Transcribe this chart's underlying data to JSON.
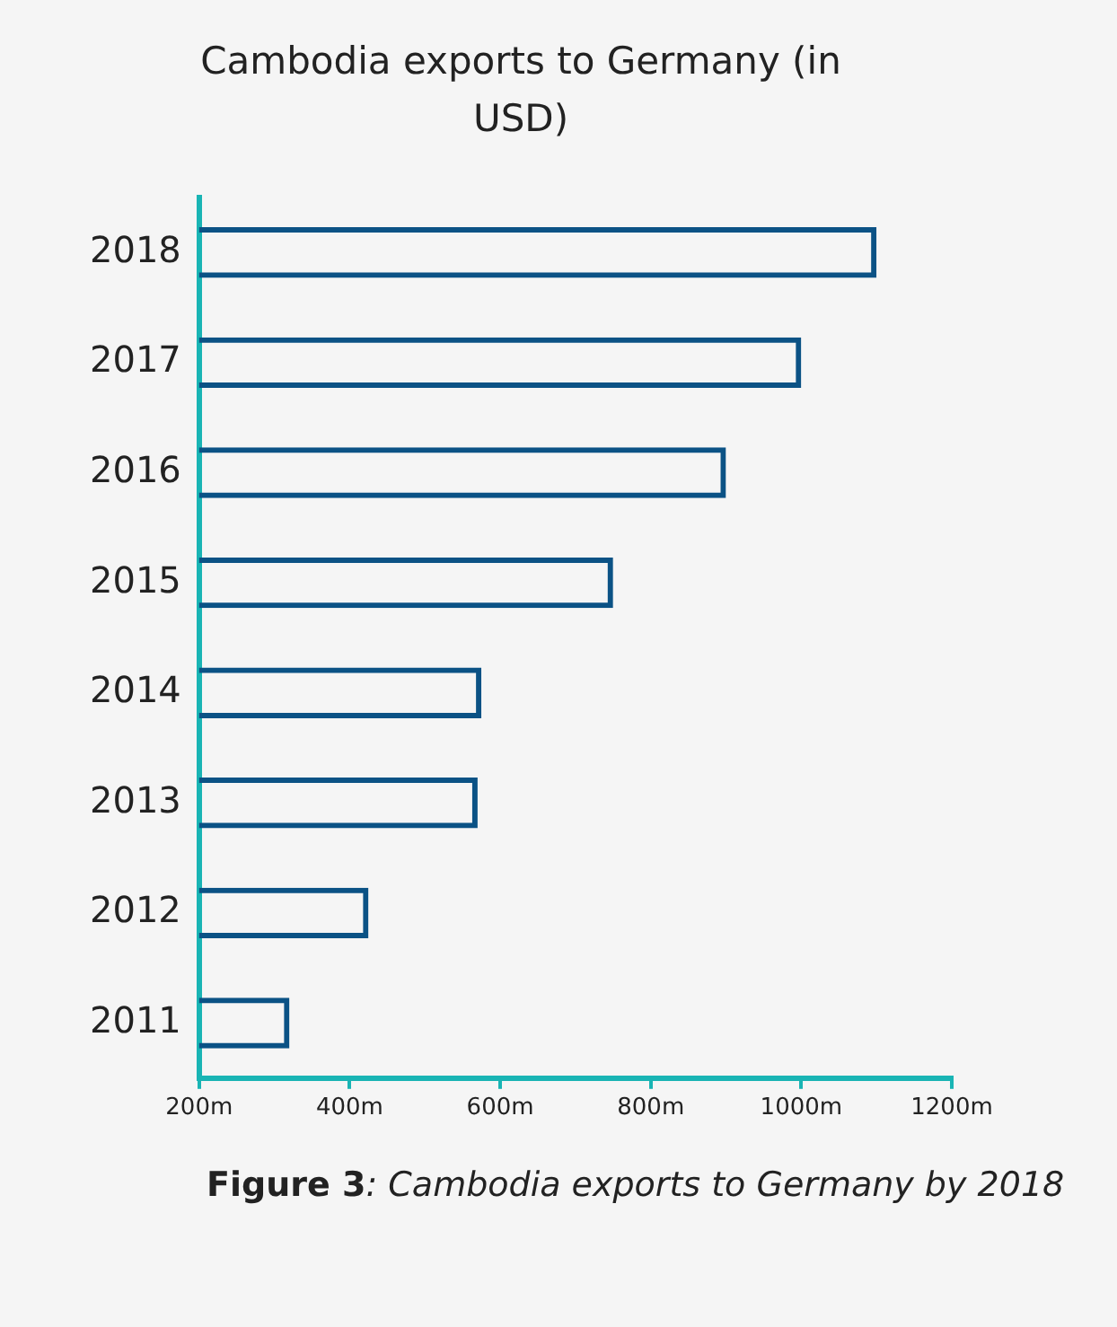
{
  "chart_data": {
    "type": "bar",
    "orientation": "horizontal",
    "title": "Cambodia exports to Germany (in USD)",
    "categories": [
      "2018",
      "2017",
      "2016",
      "2015",
      "2014",
      "2013",
      "2012",
      "2011"
    ],
    "values": [
      1100,
      1000,
      900,
      750,
      575,
      570,
      425,
      320
    ],
    "color": "#0b5285",
    "xlim": [
      200,
      1200
    ],
    "xticks": [
      {
        "value": 200,
        "label": "200m"
      },
      {
        "value": 400,
        "label": "400m"
      },
      {
        "value": 600,
        "label": "600m"
      },
      {
        "value": 800,
        "label": "800m"
      },
      {
        "value": 1000,
        "label": "1000m"
      },
      {
        "value": 1200,
        "label": "1200m"
      }
    ],
    "annotations": [
      "Figure 3: Cambodia exports to Germany by 2018"
    ]
  }
}
